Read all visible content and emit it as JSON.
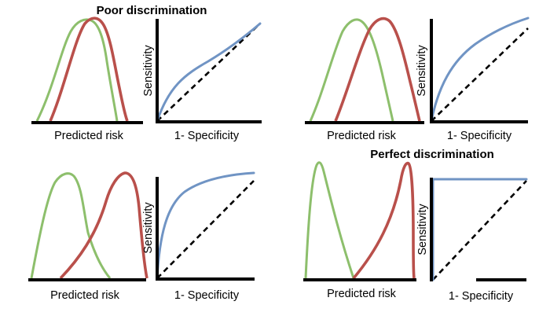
{
  "colors": {
    "no_event_curve": "#8dbf6c",
    "event_curve": "#b9504b",
    "roc_curve": "#7094c4"
  },
  "panels": [
    {
      "title": "Poor discrimination",
      "xlabel_dist": "Predicted risk",
      "xlabel_roc": "1- Specificity",
      "ylabel_roc": "Sensitivity"
    },
    {
      "title": "",
      "xlabel_dist": "Predicted risk",
      "xlabel_roc": "1- Specificity",
      "ylabel_roc": "Sensitivity"
    },
    {
      "title": "",
      "xlabel_dist": "Predicted risk",
      "xlabel_roc": "1- Specificity",
      "ylabel_roc": "Sensitivity"
    },
    {
      "title": "Perfect discrimination",
      "xlabel_dist": "Predicted risk",
      "xlabel_roc": "1- Specificity",
      "ylabel_roc": "Sensitivity"
    }
  ]
}
